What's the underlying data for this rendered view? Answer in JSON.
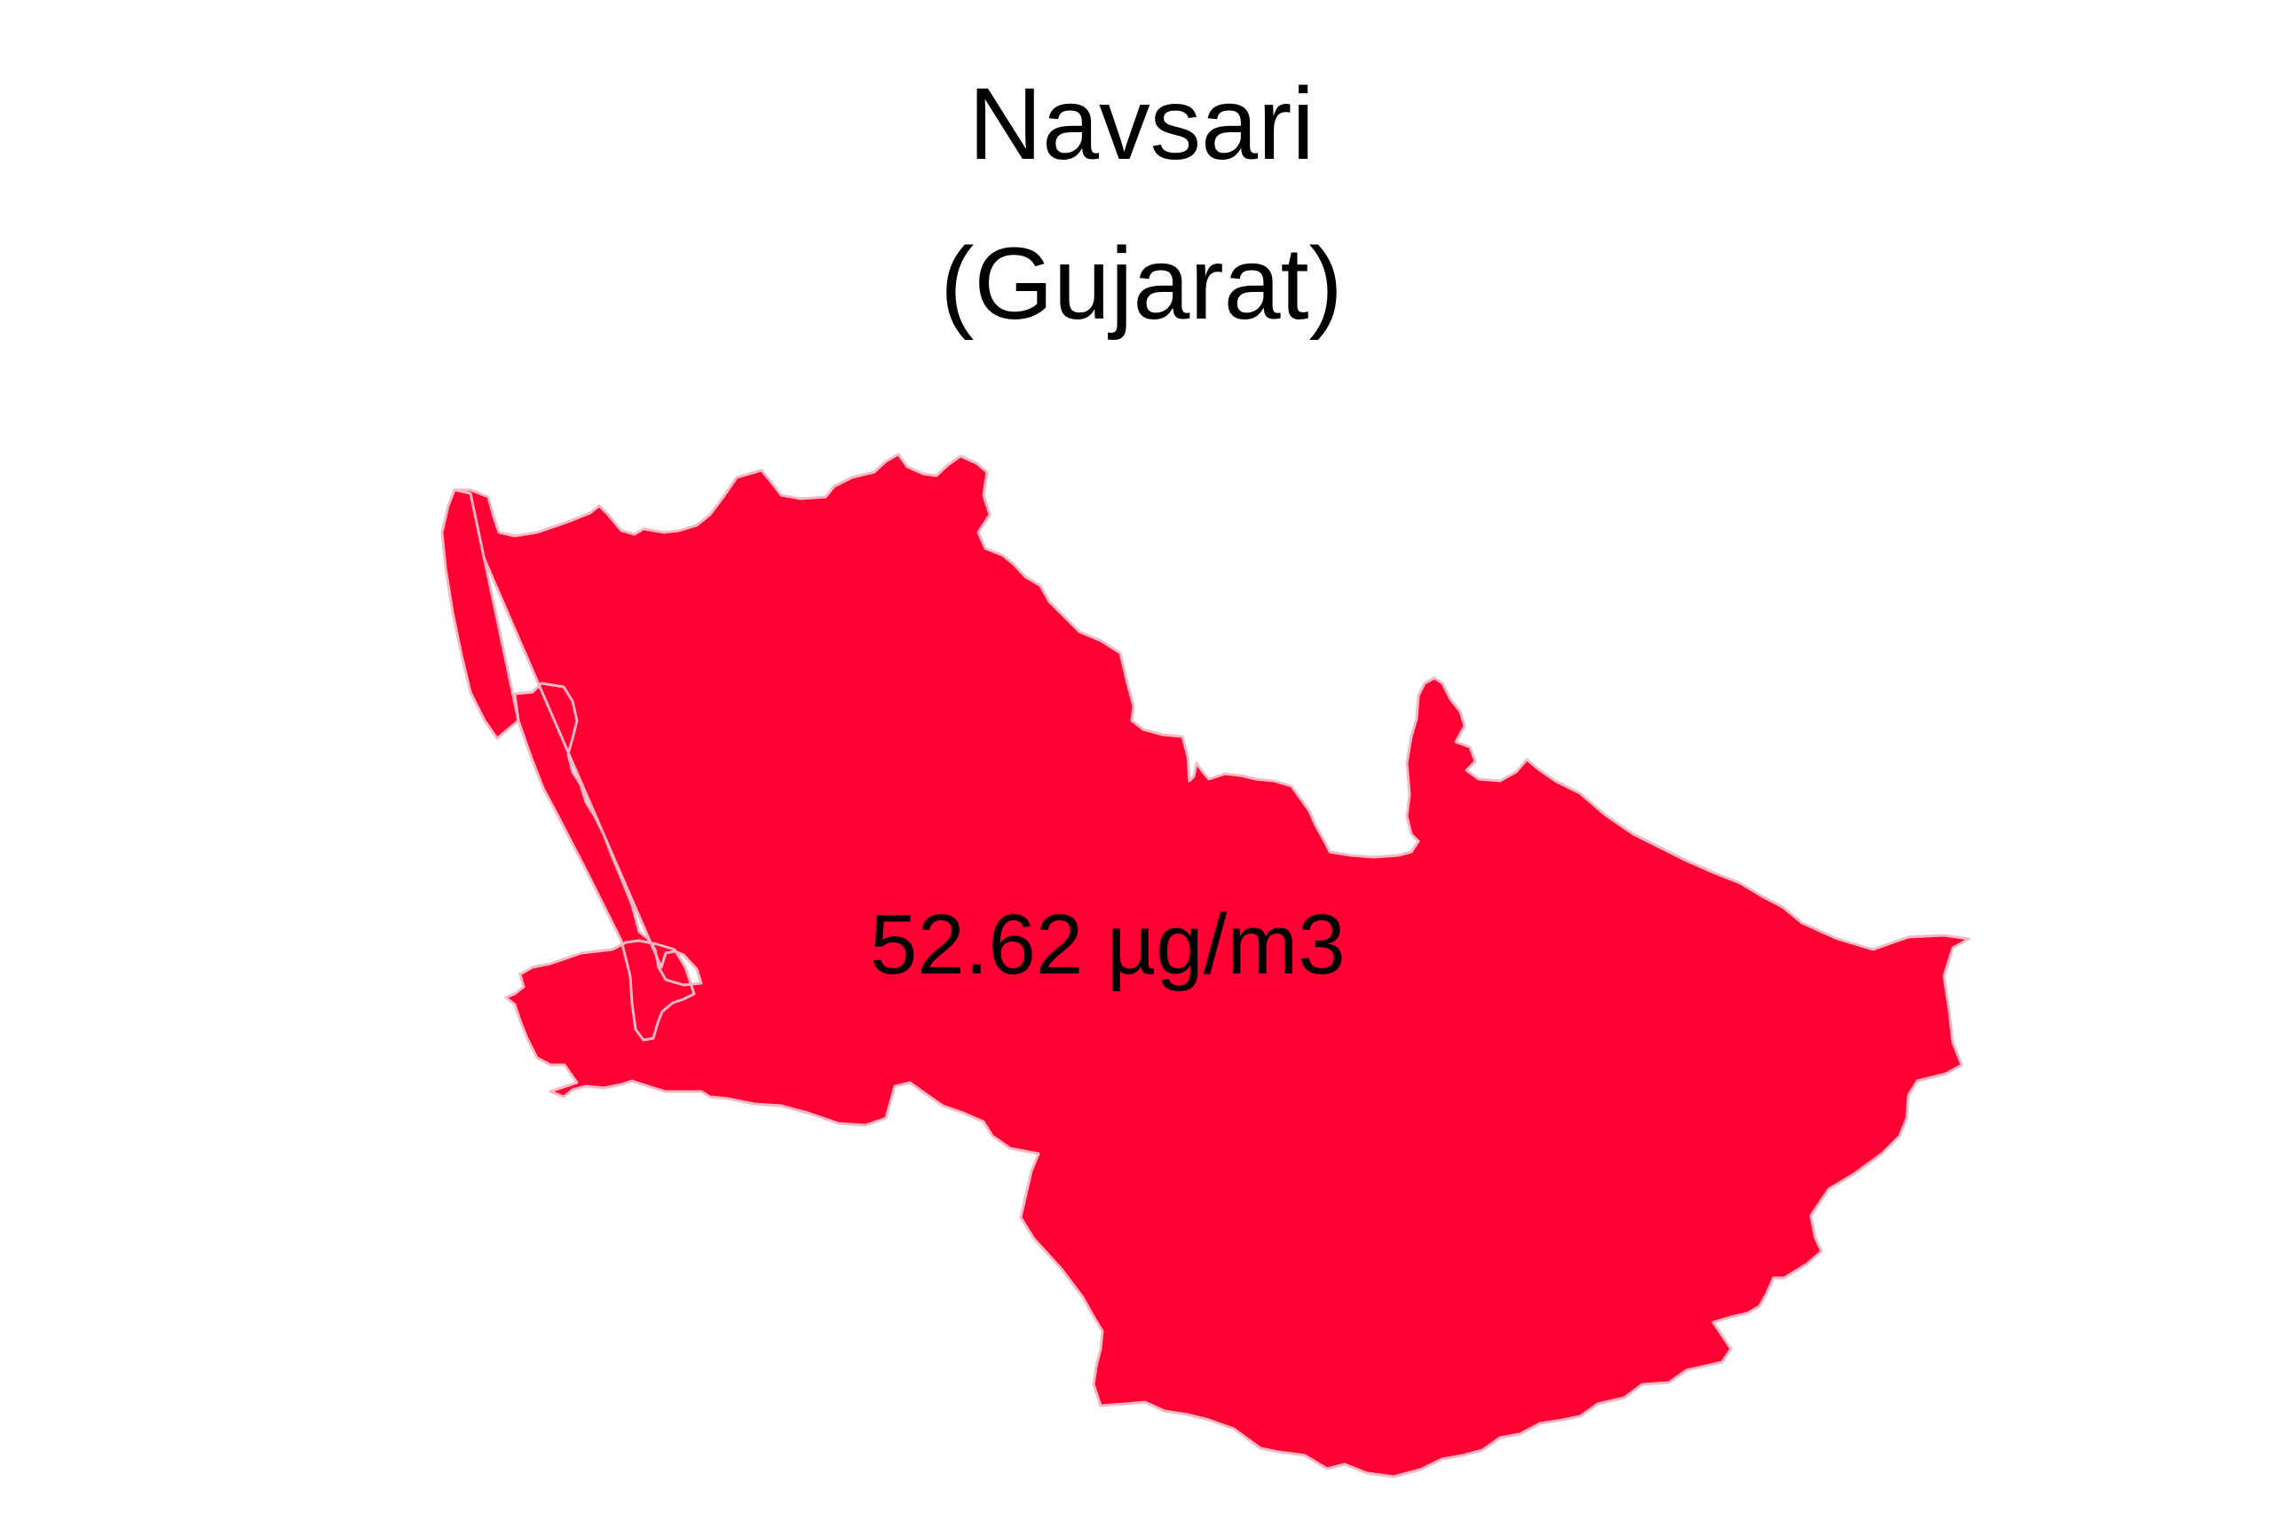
{
  "map": {
    "district": "Navsari",
    "state": "(Gujarat)",
    "value_label": "52.62 µg/m3",
    "fill_color": "#FF0033",
    "border_color": "#F4B8C4"
  }
}
